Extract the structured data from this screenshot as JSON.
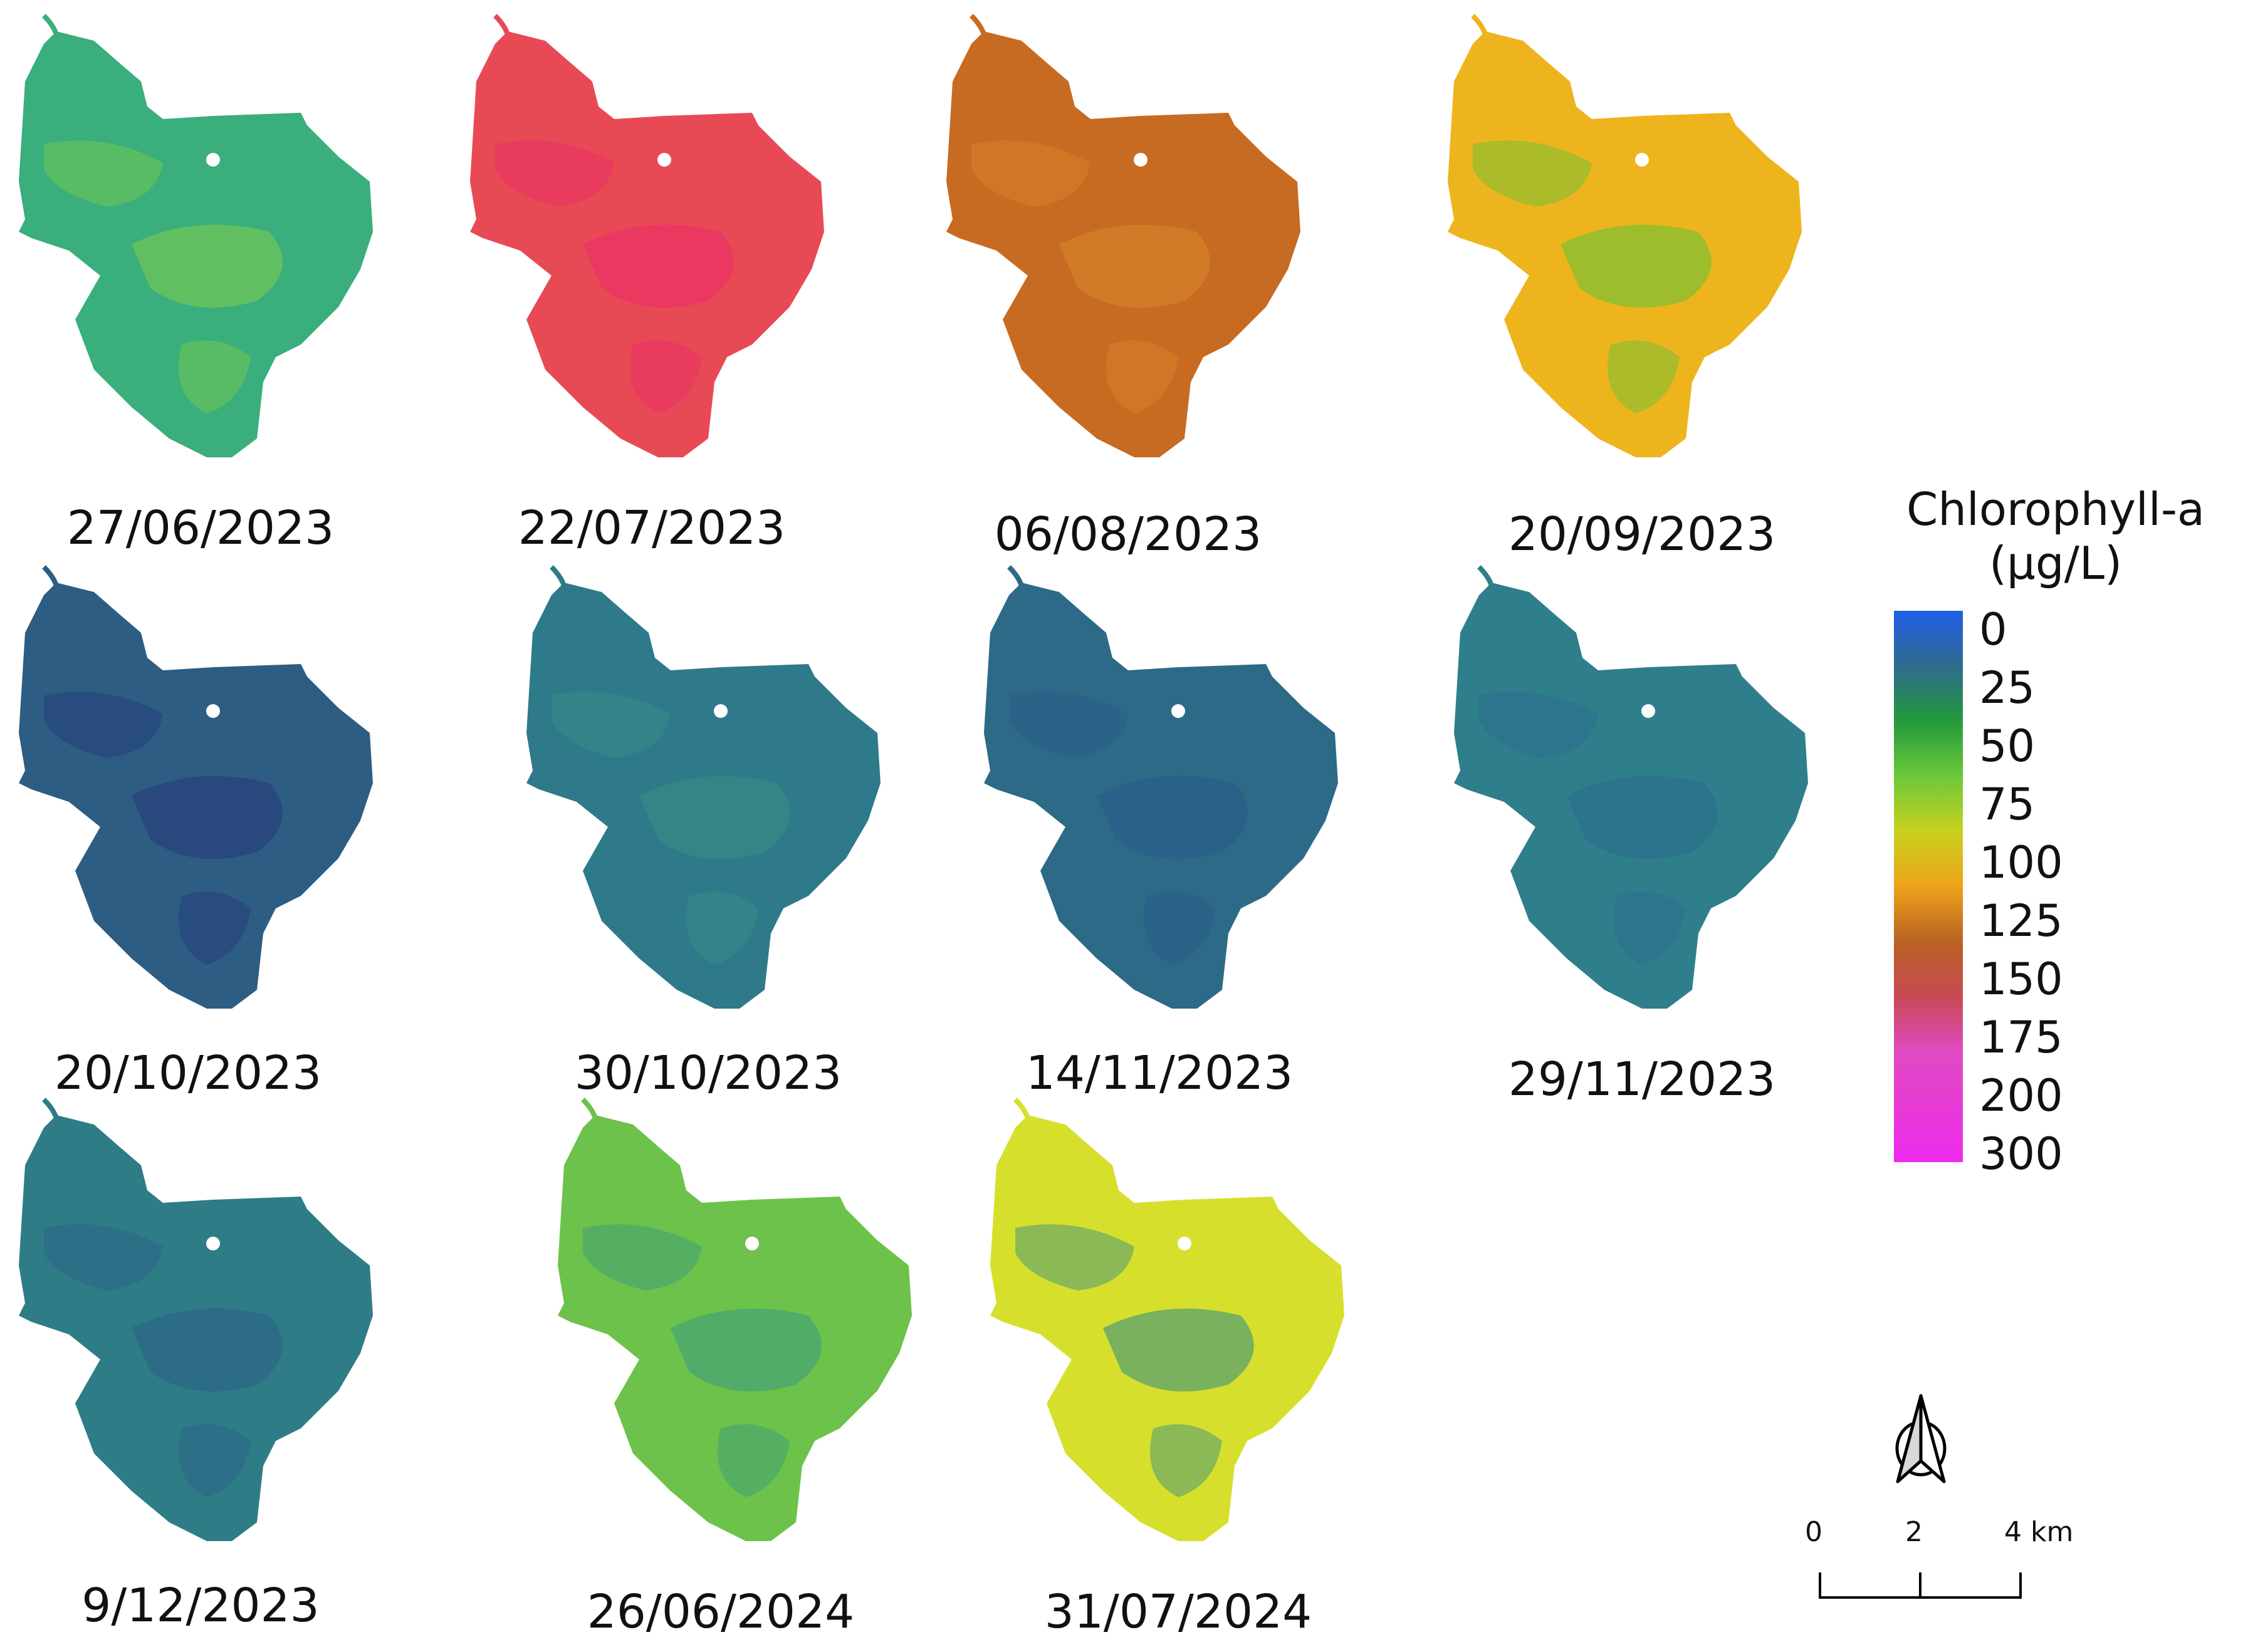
{
  "maps": [
    {
      "date": "27/06/2023",
      "color_main": "#3aae7c",
      "color_patch": "#7fcf4a"
    },
    {
      "date": "22/07/2023",
      "color_main": "#e84a55",
      "color_patch": "#ec2a6a"
    },
    {
      "date": "06/08/2023",
      "color_main": "#c76a22",
      "color_patch": "#d9862e"
    },
    {
      "date": "20/09/2023",
      "color_main": "#eeb41e",
      "color_patch": "#5cc43a"
    },
    {
      "date": "20/10/2023",
      "color_main": "#2d5d82",
      "color_patch": "#26377a"
    },
    {
      "date": "30/10/2023",
      "color_main": "#2e7a8a",
      "color_patch": "#3a8e84"
    },
    {
      "date": "14/11/2023",
      "color_main": "#2c6a88",
      "color_patch": "#28598a"
    },
    {
      "date": "29/11/2023",
      "color_main": "#2f7e8c",
      "color_patch": "#2a6a8c"
    },
    {
      "date": "9/12/2023",
      "color_main": "#2e7c86",
      "color_patch": "#2b5f88"
    },
    {
      "date": "26/06/2024",
      "color_main": "#6cc24a",
      "color_patch": "#3a9a82"
    },
    {
      "date": "31/07/2024",
      "color_main": "#d6e02c",
      "color_patch": "#2e8a88"
    }
  ],
  "legend": {
    "title_line1": "Chlorophyll-a",
    "title_line2": "(µg/L)",
    "labels": [
      "0",
      "25",
      "50",
      "75",
      "100",
      "125",
      "150",
      "175",
      "200",
      "300"
    ]
  },
  "scale": {
    "labels": [
      "0",
      "2",
      "4 km"
    ]
  },
  "north_arrow_icon": "north-arrow-icon"
}
